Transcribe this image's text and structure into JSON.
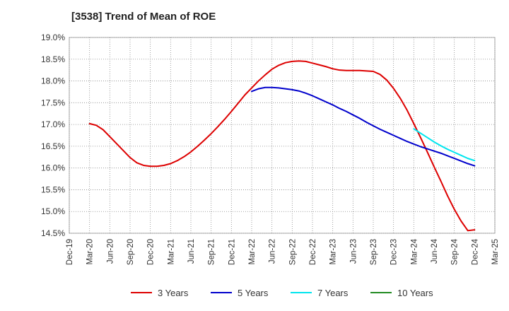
{
  "chart_data": {
    "type": "line",
    "title": "[3538]  Trend of Mean of ROE",
    "xlabel": "",
    "ylabel": "",
    "ylim": [
      14.5,
      19.0
    ],
    "yticks": [
      "19.0%",
      "18.5%",
      "18.0%",
      "17.5%",
      "17.0%",
      "16.5%",
      "16.0%",
      "15.5%",
      "15.0%",
      "14.5%"
    ],
    "x_ticks": [
      "Dec-19",
      "Mar-20",
      "Jun-20",
      "Sep-20",
      "Dec-20",
      "Mar-21",
      "Jun-21",
      "Sep-21",
      "Dec-21",
      "Mar-22",
      "Jun-22",
      "Sep-22",
      "Dec-22",
      "Mar-23",
      "Jun-23",
      "Sep-23",
      "Dec-23",
      "Mar-24",
      "Jun-24",
      "Sep-24",
      "Dec-24",
      "Mar-25"
    ],
    "grid": true,
    "legend_position": "bottom",
    "series": [
      {
        "name": "3 Years",
        "color": "#dd0000",
        "x": [
          "Mar-20",
          "Apr-20",
          "May-20",
          "Jun-20",
          "Jul-20",
          "Aug-20",
          "Sep-20",
          "Oct-20",
          "Nov-20",
          "Dec-20",
          "Jan-21",
          "Feb-21",
          "Mar-21",
          "Apr-21",
          "May-21",
          "Jun-21",
          "Jul-21",
          "Aug-21",
          "Sep-21",
          "Oct-21",
          "Nov-21",
          "Dec-21",
          "Jan-22",
          "Feb-22",
          "Mar-22",
          "Apr-22",
          "May-22",
          "Jun-22",
          "Jul-22",
          "Aug-22",
          "Sep-22",
          "Oct-22",
          "Nov-22",
          "Dec-22",
          "Jan-23",
          "Feb-23",
          "Mar-23",
          "Apr-23",
          "May-23",
          "Jun-23",
          "Jul-23",
          "Aug-23",
          "Sep-23",
          "Oct-23",
          "Nov-23",
          "Dec-23",
          "Jan-24",
          "Feb-24",
          "Mar-24",
          "Apr-24",
          "May-24",
          "Jun-24",
          "Jul-24",
          "Aug-24",
          "Sep-24",
          "Oct-24",
          "Nov-24",
          "Dec-24"
        ],
        "values": [
          17.02,
          16.98,
          16.88,
          16.72,
          16.56,
          16.4,
          16.24,
          16.12,
          16.06,
          16.04,
          16.04,
          16.06,
          16.1,
          16.17,
          16.26,
          16.37,
          16.5,
          16.64,
          16.79,
          16.95,
          17.12,
          17.3,
          17.49,
          17.68,
          17.84,
          18.0,
          18.14,
          18.27,
          18.36,
          18.42,
          18.45,
          18.46,
          18.45,
          18.41,
          18.37,
          18.33,
          18.28,
          18.25,
          18.24,
          18.24,
          18.24,
          18.23,
          18.22,
          18.15,
          18.02,
          17.83,
          17.6,
          17.33,
          17.02,
          16.7,
          16.37,
          16.03,
          15.7,
          15.36,
          15.05,
          14.78,
          14.56,
          14.58
        ]
      },
      {
        "name": "5 Years",
        "color": "#0000cc",
        "x": [
          "Mar-22",
          "Apr-22",
          "May-22",
          "Jun-22",
          "Jul-22",
          "Aug-22",
          "Sep-22",
          "Oct-22",
          "Nov-22",
          "Dec-22",
          "Jan-23",
          "Feb-23",
          "Mar-23",
          "Apr-23",
          "May-23",
          "Jun-23",
          "Jul-23",
          "Aug-23",
          "Sep-23",
          "Oct-23",
          "Nov-23",
          "Dec-23",
          "Jan-24",
          "Feb-24",
          "Mar-24",
          "Apr-24",
          "May-24",
          "Jun-24",
          "Jul-24",
          "Aug-24",
          "Sep-24",
          "Oct-24",
          "Nov-24",
          "Dec-24"
        ],
        "values": [
          17.76,
          17.82,
          17.85,
          17.85,
          17.84,
          17.82,
          17.8,
          17.77,
          17.72,
          17.66,
          17.59,
          17.52,
          17.45,
          17.37,
          17.3,
          17.22,
          17.14,
          17.05,
          16.97,
          16.89,
          16.82,
          16.75,
          16.68,
          16.61,
          16.55,
          16.49,
          16.44,
          16.39,
          16.34,
          16.28,
          16.22,
          16.16,
          16.1,
          16.05
        ]
      },
      {
        "name": "7 Years",
        "color": "#00e5ee",
        "x": [
          "Mar-24",
          "Apr-24",
          "May-24",
          "Jun-24",
          "Jul-24",
          "Aug-24",
          "Sep-24",
          "Oct-24",
          "Nov-24",
          "Dec-24"
        ],
        "values": [
          16.9,
          16.8,
          16.7,
          16.6,
          16.51,
          16.43,
          16.36,
          16.29,
          16.22,
          16.17
        ]
      },
      {
        "name": "10 Years",
        "color": "#228b22",
        "x": [],
        "values": []
      }
    ]
  }
}
